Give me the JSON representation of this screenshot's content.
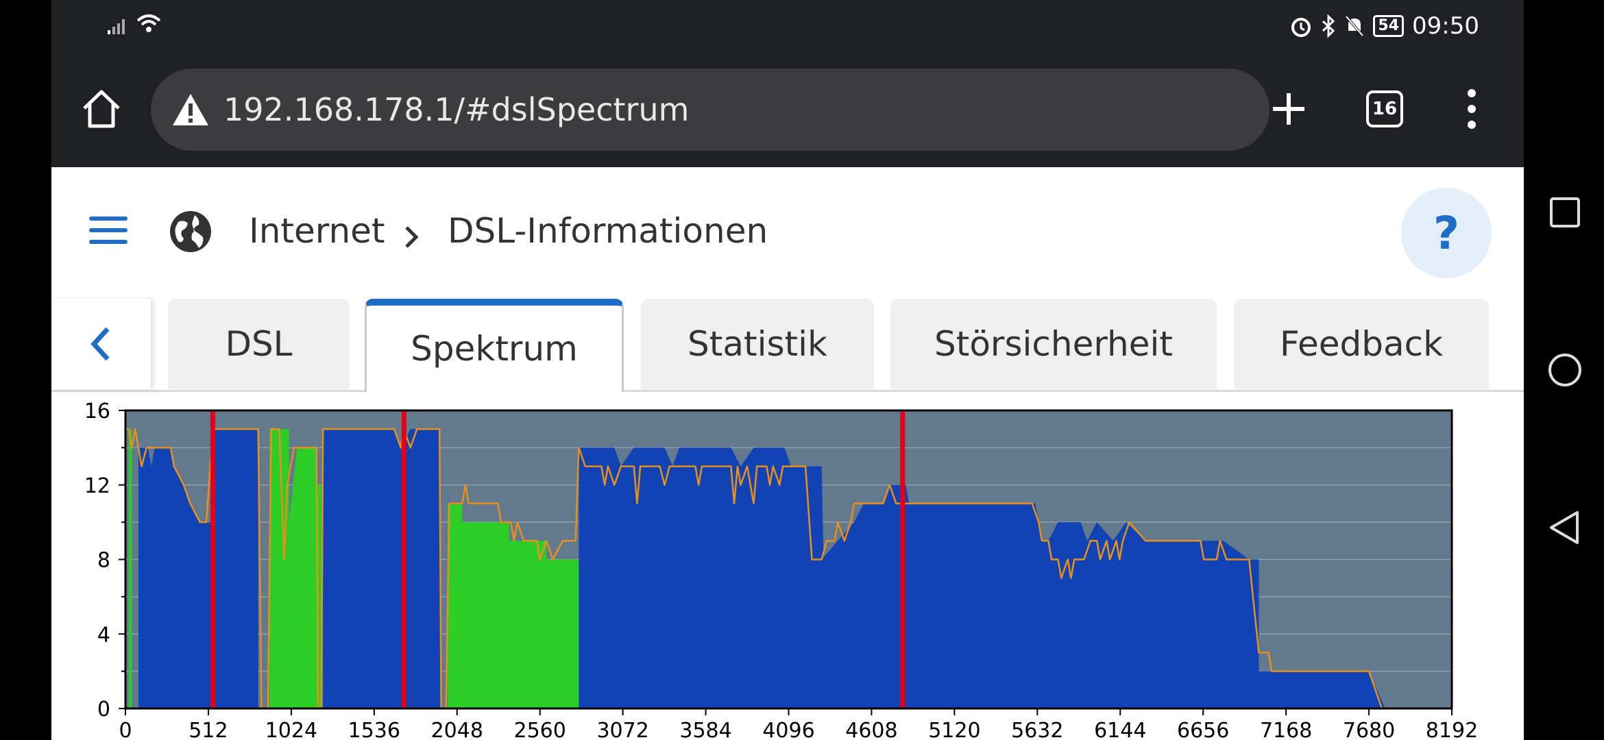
{
  "status_bar": {
    "time": "09:50",
    "battery": "54"
  },
  "browser": {
    "url": "192.168.178.1/#dslSpectrum",
    "tab_count": "16"
  },
  "breadcrumb": {
    "section": "Internet",
    "page": "DSL-Informationen"
  },
  "help_label": "?",
  "tabs": [
    {
      "label": "DSL"
    },
    {
      "label": "Spektrum",
      "active": true
    },
    {
      "label": "Statistik"
    },
    {
      "label": "Störsicherheit"
    },
    {
      "label": "Feedback"
    }
  ],
  "colors": {
    "accent": "#1e6ec8",
    "plot_background": "#637a8e",
    "downstream": "#1243b5",
    "upstream": "#2dcd27",
    "snr_line": "#e8901c",
    "marker": "#e5001a"
  },
  "chart_data": {
    "type": "area",
    "x_ticks": [
      "0",
      "512",
      "1024",
      "1536",
      "2048",
      "2560",
      "3072",
      "3584",
      "4096",
      "4608",
      "5120",
      "5632",
      "6144",
      "6656",
      "7168",
      "7680",
      "8192"
    ],
    "y_ticks": [
      "0",
      "4",
      "8",
      "12",
      "16"
    ],
    "xlim": [
      0,
      8192
    ],
    "ylim": [
      0,
      16
    ],
    "grid": true,
    "markers_x": [
      540,
      1720,
      4800
    ],
    "series": [
      {
        "kind": "upstream",
        "segments": [
          [
            [
              20,
              0
            ],
            [
              20,
              15
            ],
            [
              40,
              15
            ],
            [
              40,
              0
            ]
          ],
          [
            [
              890,
              0
            ],
            [
              890,
              15
            ],
            [
              1010,
              15
            ],
            [
              1010,
              10
            ],
            [
              1060,
              14
            ],
            [
              1180,
              14
            ],
            [
              1180,
              12
            ],
            [
              1210,
              12
            ],
            [
              1210,
              0
            ]
          ],
          [
            [
              1990,
              0
            ],
            [
              1990,
              11
            ],
            [
              2080,
              11
            ],
            [
              2080,
              10
            ],
            [
              2370,
              10
            ],
            [
              2370,
              9
            ],
            [
              2600,
              9
            ],
            [
              2600,
              8
            ],
            [
              2800,
              8
            ],
            [
              2800,
              0
            ]
          ]
        ]
      },
      {
        "kind": "downstream",
        "segments": [
          [
            [
              80,
              0
            ],
            [
              80,
              14
            ],
            [
              140,
              14
            ],
            [
              160,
              13
            ],
            [
              180,
              14
            ],
            [
              280,
              14
            ],
            [
              300,
              13
            ],
            [
              360,
              12
            ],
            [
              400,
              11
            ],
            [
              460,
              10
            ],
            [
              500,
              10
            ],
            [
              540,
              10
            ],
            [
              540,
              15
            ],
            [
              820,
              15
            ],
            [
              820,
              0
            ]
          ],
          [
            [
              1220,
              0
            ],
            [
              1220,
              15
            ],
            [
              1660,
              15
            ],
            [
              1700,
              14
            ],
            [
              1760,
              15
            ],
            [
              1940,
              15
            ],
            [
              1950,
              0
            ]
          ],
          [
            [
              2800,
              0
            ],
            [
              2800,
              14
            ],
            [
              3020,
              14
            ],
            [
              3060,
              13
            ],
            [
              3140,
              14
            ],
            [
              3330,
              14
            ],
            [
              3380,
              13
            ],
            [
              3420,
              14
            ],
            [
              3740,
              14
            ],
            [
              3800,
              13
            ],
            [
              3880,
              14
            ],
            [
              4070,
              14
            ],
            [
              4110,
              13
            ],
            [
              4300,
              13
            ],
            [
              4330,
              0
            ]
          ]
        ]
      },
      {
        "kind": "downstream",
        "segments": [
          [
            [
              4240,
              0
            ],
            [
              4240,
              8
            ],
            [
              4300,
              8
            ],
            [
              4400,
              9
            ],
            [
              4500,
              10
            ],
            [
              4560,
              11
            ],
            [
              4680,
              11
            ],
            [
              4720,
              12
            ],
            [
              4820,
              12
            ],
            [
              4840,
              11
            ],
            [
              5620,
              11
            ],
            [
              5660,
              9
            ],
            [
              5700,
              9
            ],
            [
              5760,
              10
            ],
            [
              5900,
              10
            ],
            [
              5940,
              9
            ],
            [
              6000,
              10
            ],
            [
              6100,
              9
            ],
            [
              6180,
              10
            ],
            [
              6300,
              9
            ],
            [
              6400,
              9
            ],
            [
              6640,
              9
            ],
            [
              6700,
              9
            ],
            [
              6780,
              9
            ],
            [
              6940,
              8
            ],
            [
              7000,
              8
            ],
            [
              7000,
              2
            ],
            [
              7280,
              2
            ],
            [
              7680,
              2
            ],
            [
              7780,
              0
            ]
          ]
        ]
      }
    ],
    "snr_line": [
      [
        0,
        15
      ],
      [
        20,
        15
      ],
      [
        40,
        14
      ],
      [
        60,
        15
      ],
      [
        80,
        14
      ],
      [
        100,
        13
      ],
      [
        130,
        14
      ],
      [
        280,
        14
      ],
      [
        300,
        13
      ],
      [
        360,
        12
      ],
      [
        400,
        11
      ],
      [
        460,
        10
      ],
      [
        500,
        10
      ],
      [
        540,
        15
      ],
      [
        820,
        15
      ],
      [
        840,
        0
      ],
      [
        880,
        0
      ],
      [
        900,
        15
      ],
      [
        950,
        15
      ],
      [
        980,
        8
      ],
      [
        1000,
        12
      ],
      [
        1040,
        14
      ],
      [
        1180,
        14
      ],
      [
        1190,
        0
      ],
      [
        1210,
        0
      ],
      [
        1220,
        15
      ],
      [
        1660,
        15
      ],
      [
        1700,
        14
      ],
      [
        1720,
        15
      ],
      [
        1760,
        14
      ],
      [
        1800,
        15
      ],
      [
        1940,
        15
      ],
      [
        1950,
        0
      ],
      [
        1980,
        0
      ],
      [
        2000,
        11
      ],
      [
        2080,
        11
      ],
      [
        2100,
        12
      ],
      [
        2120,
        11
      ],
      [
        2300,
        11
      ],
      [
        2320,
        10
      ],
      [
        2380,
        10
      ],
      [
        2400,
        9
      ],
      [
        2420,
        10
      ],
      [
        2460,
        9
      ],
      [
        2500,
        9
      ],
      [
        2540,
        9
      ],
      [
        2560,
        8
      ],
      [
        2600,
        9
      ],
      [
        2640,
        8
      ],
      [
        2700,
        9
      ],
      [
        2780,
        9
      ],
      [
        2800,
        14
      ],
      [
        2840,
        13
      ],
      [
        2940,
        13
      ],
      [
        2960,
        12
      ],
      [
        2980,
        13
      ],
      [
        3020,
        12
      ],
      [
        3060,
        13
      ],
      [
        3140,
        13
      ],
      [
        3160,
        11
      ],
      [
        3180,
        13
      ],
      [
        3300,
        13
      ],
      [
        3330,
        12
      ],
      [
        3360,
        13
      ],
      [
        3520,
        13
      ],
      [
        3540,
        12
      ],
      [
        3560,
        13
      ],
      [
        3740,
        13
      ],
      [
        3760,
        11
      ],
      [
        3780,
        13
      ],
      [
        3800,
        12
      ],
      [
        3840,
        13
      ],
      [
        3880,
        11
      ],
      [
        3900,
        13
      ],
      [
        3960,
        13
      ],
      [
        3980,
        12
      ],
      [
        4000,
        13
      ],
      [
        4040,
        12
      ],
      [
        4060,
        13
      ],
      [
        4200,
        13
      ],
      [
        4240,
        8
      ],
      [
        4300,
        8
      ],
      [
        4330,
        9
      ],
      [
        4380,
        9
      ],
      [
        4400,
        10
      ],
      [
        4440,
        9
      ],
      [
        4480,
        10
      ],
      [
        4500,
        11
      ],
      [
        4680,
        11
      ],
      [
        4720,
        12
      ],
      [
        4760,
        11
      ],
      [
        4820,
        11
      ],
      [
        4840,
        11
      ],
      [
        5560,
        11
      ],
      [
        5600,
        11
      ],
      [
        5640,
        10
      ],
      [
        5660,
        9
      ],
      [
        5700,
        9
      ],
      [
        5720,
        8
      ],
      [
        5760,
        8
      ],
      [
        5780,
        7
      ],
      [
        5820,
        8
      ],
      [
        5840,
        7
      ],
      [
        5860,
        8
      ],
      [
        5920,
        8
      ],
      [
        5960,
        9
      ],
      [
        6000,
        9
      ],
      [
        6020,
        8
      ],
      [
        6060,
        9
      ],
      [
        6080,
        8
      ],
      [
        6120,
        9
      ],
      [
        6140,
        8
      ],
      [
        6160,
        9
      ],
      [
        6200,
        10
      ],
      [
        6300,
        9
      ],
      [
        6640,
        9
      ],
      [
        6660,
        8
      ],
      [
        6740,
        8
      ],
      [
        6760,
        9
      ],
      [
        6800,
        8
      ],
      [
        6940,
        8
      ],
      [
        7000,
        3
      ],
      [
        7060,
        3
      ],
      [
        7080,
        2
      ],
      [
        7680,
        2
      ],
      [
        7720,
        1
      ],
      [
        7760,
        0
      ],
      [
        8192,
        0
      ]
    ]
  }
}
